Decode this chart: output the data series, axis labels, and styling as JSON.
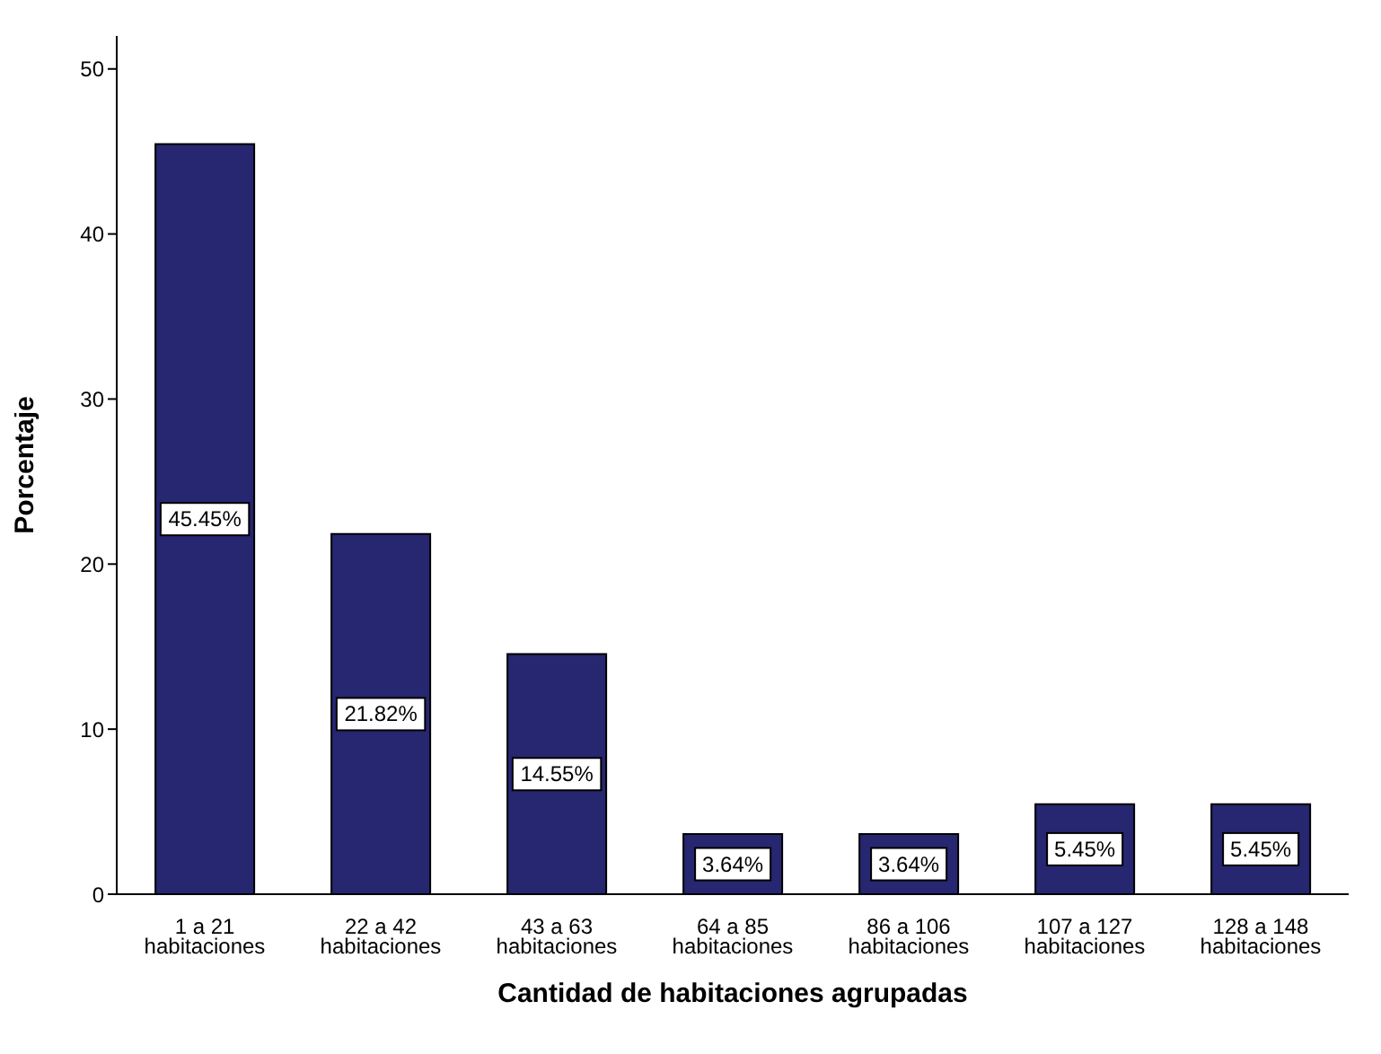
{
  "chart_data": {
    "type": "bar",
    "xlabel": "Cantidad de habitaciones agrupadas",
    "ylabel": "Porcentaje",
    "categories": [
      "1 a 21 habitaciones",
      "22 a 42 habitaciones",
      "43 a 63 habitaciones",
      "64 a 85 habitaciones",
      "86 a 106 habitaciones",
      "107 a 127 habitaciones",
      "128 a 148 habitaciones"
    ],
    "values": [
      45.45,
      21.82,
      14.55,
      3.64,
      3.64,
      5.45,
      5.45
    ],
    "value_labels": [
      "45.45%",
      "21.82%",
      "14.55%",
      "3.64%",
      "3.64%",
      "5.45%",
      "5.45%"
    ],
    "color": "#262671",
    "ylim": [
      0,
      52
    ],
    "yticks": [
      0,
      10,
      20,
      30,
      40,
      50
    ],
    "grid": false,
    "legend": false
  }
}
